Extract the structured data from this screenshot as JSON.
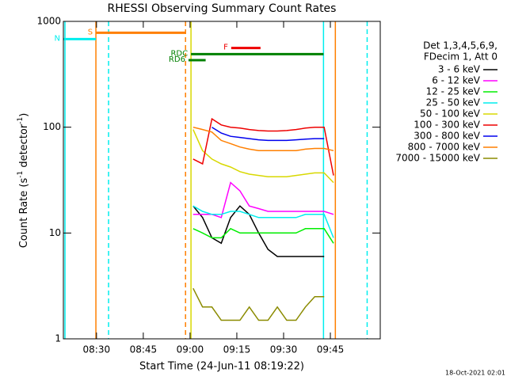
{
  "chart_data": {
    "type": "line",
    "title": "RHESSI Observing Summary Count Rates",
    "xlabel": "Start Time (24-Jun-11 08:19:22)",
    "ylabel": [
      "Count Rate (s",
      "-1",
      " detector",
      "-1",
      ")"
    ],
    "footer": "18-Oct-2021 02:01",
    "legend_header": [
      "Det 1,3,4,5,6,9,",
      "FDecim 1, Att 0"
    ],
    "log_y": true,
    "xlim": [
      499.37,
      601
    ],
    "ylim": [
      1,
      1000
    ],
    "xticks": [
      {
        "value": 510,
        "label": "08:30"
      },
      {
        "value": 525,
        "label": "08:45"
      },
      {
        "value": 540,
        "label": "09:00"
      },
      {
        "value": 555,
        "label": "09:15"
      },
      {
        "value": 570,
        "label": "09:30"
      },
      {
        "value": 585,
        "label": "09:45"
      }
    ],
    "yticks": [
      1,
      10,
      100,
      1000
    ],
    "x": [
      541,
      544,
      547,
      550,
      553,
      556,
      559,
      562,
      565,
      568,
      571,
      574,
      577,
      580,
      583,
      586
    ],
    "series": [
      {
        "name": "3 - 6 keV",
        "color": "#000000",
        "values": [
          18,
          14,
          9,
          8,
          14,
          18,
          15,
          10,
          7,
          6,
          6,
          6,
          6,
          6,
          6,
          null
        ]
      },
      {
        "name": "6 - 12 keV",
        "color": "#ff00ff",
        "values": [
          15,
          15,
          15,
          14,
          30,
          25,
          18,
          17,
          16,
          16,
          16,
          16,
          16,
          16,
          16,
          15
        ]
      },
      {
        "name": "12 - 25 keV",
        "color": "#00ee00",
        "values": [
          11,
          10,
          9,
          9,
          11,
          10,
          10,
          10,
          10,
          10,
          10,
          10,
          11,
          11,
          11,
          8
        ]
      },
      {
        "name": "25 - 50 keV",
        "color": "#00eeee",
        "values": [
          18,
          16,
          15,
          15,
          16,
          16,
          15,
          14,
          14,
          14,
          14,
          14,
          15,
          15,
          15,
          9
        ]
      },
      {
        "name": "50 - 100 keV",
        "color": "#d8d800",
        "values": [
          95,
          60,
          50,
          45,
          42,
          38,
          36,
          35,
          34,
          34,
          34,
          35,
          36,
          37,
          37,
          30
        ]
      },
      {
        "name": "100 - 300 keV",
        "color": "#ee0000",
        "values": [
          50,
          45,
          120,
          105,
          100,
          98,
          95,
          93,
          92,
          92,
          93,
          95,
          98,
          100,
          100,
          35
        ]
      },
      {
        "name": "300 - 800 keV",
        "color": "#0000ee",
        "values": [
          null,
          null,
          100,
          88,
          82,
          80,
          78,
          76,
          75,
          75,
          75,
          76,
          77,
          78,
          78,
          null
        ]
      },
      {
        "name": "800 - 7000 keV",
        "color": "#ff7f00",
        "values": [
          100,
          95,
          90,
          75,
          70,
          65,
          62,
          60,
          60,
          60,
          60,
          60,
          62,
          63,
          63,
          60
        ]
      },
      {
        "name": "7000 - 15000 keV",
        "color": "#8b8b00",
        "values": [
          3,
          2,
          2,
          1.5,
          1.5,
          1.5,
          2,
          1.5,
          1.5,
          2,
          1.5,
          1.5,
          2,
          2.5,
          2.5,
          null
        ]
      }
    ],
    "vlines": [
      {
        "x": 499.88,
        "color": "#00eeee",
        "dashed": false
      },
      {
        "x": 509.8,
        "color": "#ff7f00",
        "dashed": false
      },
      {
        "x": 513.87,
        "color": "#00eeee",
        "dashed": true
      },
      {
        "x": 538.55,
        "color": "#ff7f00",
        "dashed": true
      },
      {
        "x": 540.3,
        "color": "#d8d800",
        "dashed": false
      },
      {
        "x": 582.8,
        "color": "#00eeee",
        "dashed": false
      },
      {
        "x": 586.6,
        "color": "#ff7f00",
        "dashed": false
      },
      {
        "x": 596.8,
        "color": "#00eeee",
        "dashed": true
      }
    ],
    "bars": [
      {
        "label": "S",
        "color": "#ff7f00",
        "start": 509.8,
        "end": 538.55,
        "level": 780
      },
      {
        "label": "N",
        "color": "#00eeee",
        "start": 499.37,
        "end": 509.8,
        "level": 680
      },
      {
        "label": "F",
        "color": "#ee0000",
        "start": 553.2,
        "end": 562.6,
        "level": 560
      },
      {
        "label": "RDC",
        "color": "#008000",
        "start": 540.3,
        "end": 582.8,
        "level": 490
      },
      {
        "label": "RD6",
        "color": "#008000",
        "start": 539.5,
        "end": 545,
        "level": 430
      }
    ]
  }
}
